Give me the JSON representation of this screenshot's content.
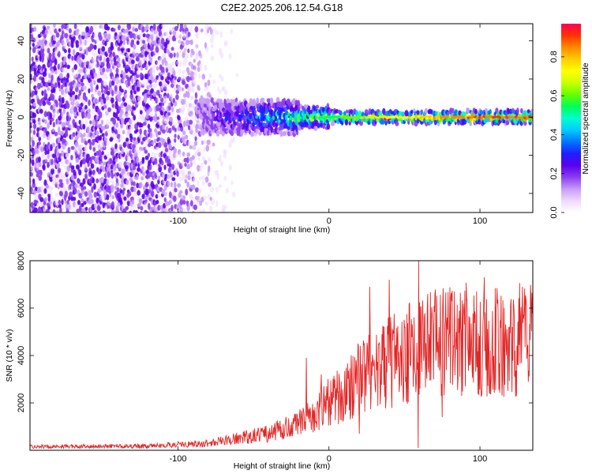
{
  "title": "C2E2.2025.206.12.54.G18",
  "colors": {
    "line": "#e32626",
    "axis": "#000000",
    "cmap": [
      "#ffffff",
      "#efd9ff",
      "#c79bf7",
      "#8a3df0",
      "#5a00ee",
      "#1f1fff",
      "#0077ff",
      "#00ccff",
      "#00ffcc",
      "#00ff55",
      "#66ff00",
      "#ccff00",
      "#ffff00",
      "#ffcc00",
      "#ff8800",
      "#ff3300",
      "#ff0055"
    ]
  },
  "chart_data": [
    {
      "type": "heatmap",
      "xlabel": "Height of straight line (km)",
      "ylabel": "Frequency (Hz)",
      "xlim": [
        -198,
        135
      ],
      "ylim": [
        -50,
        49
      ],
      "x_ticks": [
        -100,
        0,
        100
      ],
      "y_ticks": [
        40,
        20,
        0,
        -20,
        -40
      ],
      "x_tick_labels": [
        "-100",
        "0",
        "100"
      ],
      "y_tick_labels": [
        "40",
        "20",
        "0",
        "-20",
        "-40"
      ],
      "colorbar": {
        "label": "Normalized spectral amplitude",
        "range": [
          0,
          0.97
        ],
        "ticks": [
          0.0,
          0.2,
          0.4,
          0.6,
          0.8
        ],
        "tick_labels": [
          "0.0",
          "0.2",
          "0.4",
          "0.6",
          "0.8"
        ]
      },
      "pattern": {
        "noise_region_x": [
          -198,
          -60
        ],
        "signal_center_hz": 0,
        "signal_onset_x": -88,
        "signal_strong_x": 0
      }
    },
    {
      "type": "line",
      "xlabel": "Height of straight line (km)",
      "ylabel": "SNR (10 * v/v)",
      "xlim": [
        -198,
        135
      ],
      "ylim": [
        0,
        8000
      ],
      "x_ticks": [
        -100,
        0,
        100
      ],
      "y_ticks": [
        2000,
        4000,
        6000,
        8000
      ],
      "x_tick_labels": [
        "-100",
        "0",
        "100"
      ],
      "y_tick_labels": [
        "2000",
        "4000",
        "6000",
        "8000"
      ],
      "trend": [
        {
          "x": -198,
          "y": 150
        },
        {
          "x": -120,
          "y": 180
        },
        {
          "x": -80,
          "y": 300
        },
        {
          "x": -60,
          "y": 500
        },
        {
          "x": -40,
          "y": 700
        },
        {
          "x": -20,
          "y": 1100
        },
        {
          "x": 0,
          "y": 2000
        },
        {
          "x": 20,
          "y": 3000
        },
        {
          "x": 40,
          "y": 3700
        },
        {
          "x": 60,
          "y": 4300
        },
        {
          "x": 80,
          "y": 4600
        },
        {
          "x": 100,
          "y": 4700
        },
        {
          "x": 120,
          "y": 4600
        },
        {
          "x": 135,
          "y": 4700
        }
      ],
      "peaks": [
        {
          "x": 59.5,
          "y": 8000
        },
        {
          "x": 40,
          "y": 7200
        },
        {
          "x": 27,
          "y": 6900
        },
        {
          "x": 103,
          "y": 7300
        },
        {
          "x": 83,
          "y": 6700
        },
        {
          "x": 128,
          "y": 6900
        },
        {
          "x": -15,
          "y": 3900
        },
        {
          "x": -5,
          "y": 3200
        }
      ],
      "troughs": [
        {
          "x": 59,
          "y": 100
        },
        {
          "x": 20,
          "y": 700
        },
        {
          "x": 75,
          "y": 1400
        }
      ]
    }
  ]
}
